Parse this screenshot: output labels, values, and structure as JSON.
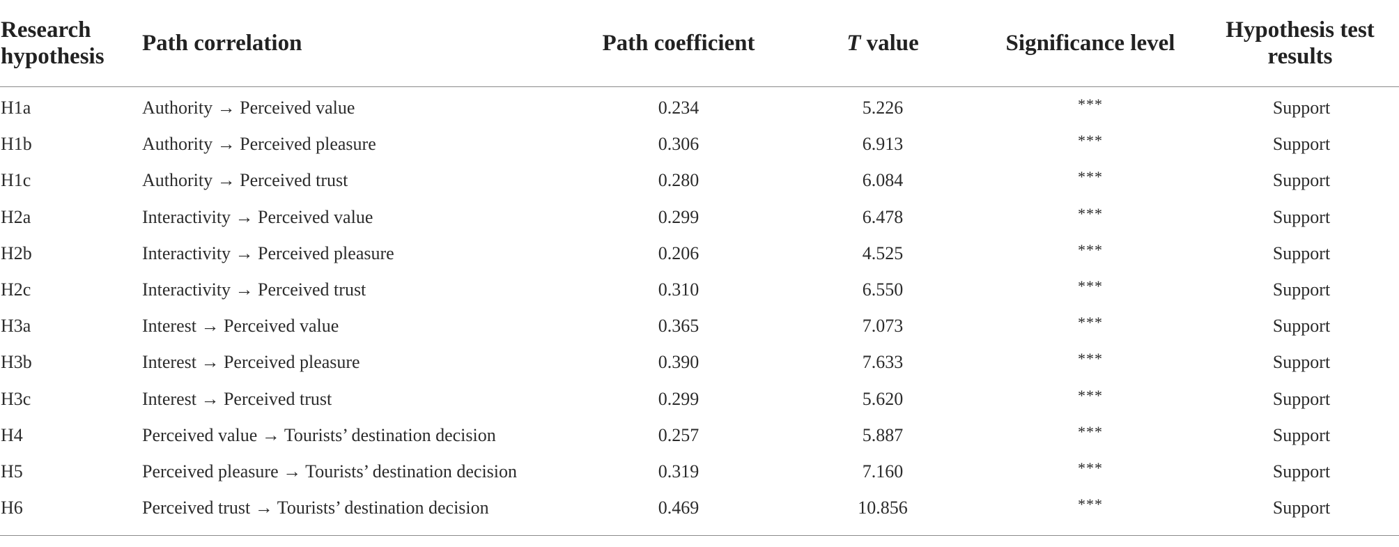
{
  "headers": {
    "research_hypothesis": "Research hypothesis",
    "path_correlation": "Path correlation",
    "path_coefficient": "Path coefficient",
    "t_value_italic": "T",
    "t_value_rest": " value",
    "significance_level": "Significance level",
    "hypothesis_test_results": "Hypothesis test results"
  },
  "rows": [
    {
      "hypothesis": "H1a",
      "path": "Authority → Perceived value",
      "coefficient": "0.234",
      "t_value": "5.226",
      "significance": "***",
      "result": "Support"
    },
    {
      "hypothesis": "H1b",
      "path": "Authority → Perceived pleasure",
      "coefficient": "0.306",
      "t_value": "6.913",
      "significance": "***",
      "result": "Support"
    },
    {
      "hypothesis": "H1c",
      "path": "Authority → Perceived trust",
      "coefficient": "0.280",
      "t_value": "6.084",
      "significance": "***",
      "result": "Support"
    },
    {
      "hypothesis": "H2a",
      "path": "Interactivity → Perceived value",
      "coefficient": "0.299",
      "t_value": "6.478",
      "significance": "***",
      "result": "Support"
    },
    {
      "hypothesis": "H2b",
      "path": "Interactivity → Perceived pleasure",
      "coefficient": "0.206",
      "t_value": "4.525",
      "significance": "***",
      "result": "Support"
    },
    {
      "hypothesis": "H2c",
      "path": "Interactivity → Perceived trust",
      "coefficient": "0.310",
      "t_value": "6.550",
      "significance": "***",
      "result": "Support"
    },
    {
      "hypothesis": "H3a",
      "path": "Interest → Perceived value",
      "coefficient": "0.365",
      "t_value": "7.073",
      "significance": "***",
      "result": "Support"
    },
    {
      "hypothesis": "H3b",
      "path": "Interest → Perceived pleasure",
      "coefficient": "0.390",
      "t_value": "7.633",
      "significance": "***",
      "result": "Support"
    },
    {
      "hypothesis": "H3c",
      "path": "Interest → Perceived trust",
      "coefficient": "0.299",
      "t_value": "5.620",
      "significance": "***",
      "result": "Support"
    },
    {
      "hypothesis": "H4",
      "path": "Perceived value → Tourists’ destination decision",
      "coefficient": "0.257",
      "t_value": "5.887",
      "significance": "***",
      "result": "Support"
    },
    {
      "hypothesis": "H5",
      "path": "Perceived pleasure → Tourists’ destination decision",
      "coefficient": "0.319",
      "t_value": "7.160",
      "significance": "***",
      "result": "Support"
    },
    {
      "hypothesis": "H6",
      "path": "Perceived trust → Tourists’ destination decision",
      "coefficient": "0.469",
      "t_value": "10.856",
      "significance": "***",
      "result": "Support"
    }
  ]
}
